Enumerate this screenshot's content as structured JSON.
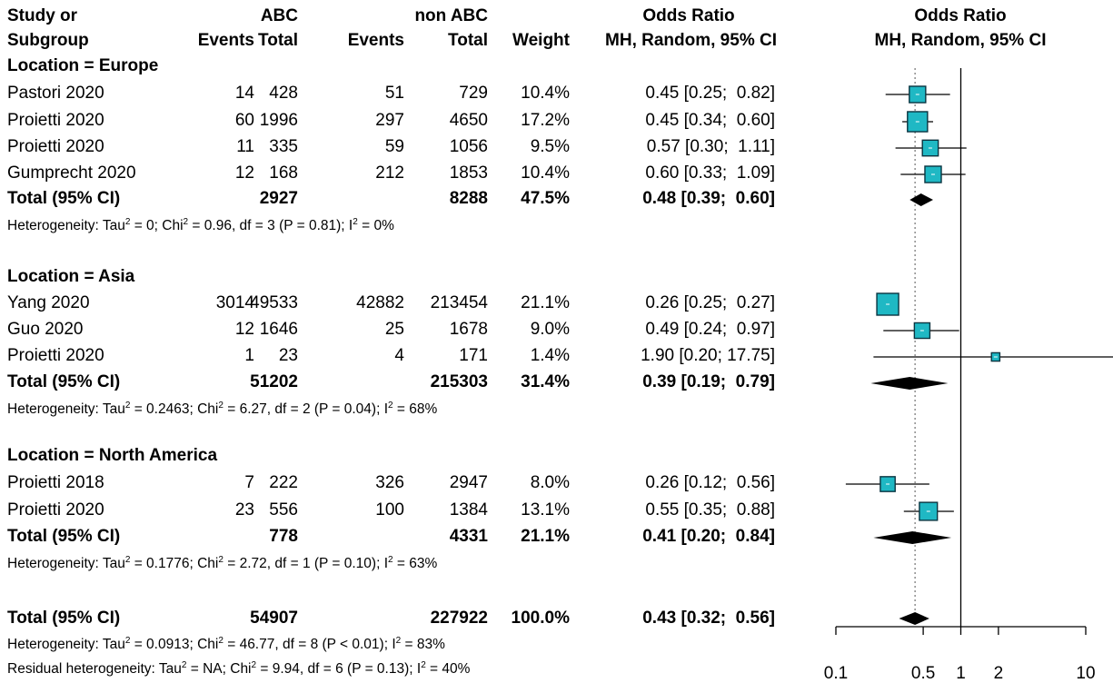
{
  "header": {
    "col_study": [
      "Study or",
      "Subgroup"
    ],
    "abc_label": "ABC",
    "nonabc_label": "non ABC",
    "events_label": "Events",
    "total_label": "Total",
    "weight_label": "Weight",
    "or_label": [
      "Odds Ratio",
      "MH, Random, 95% CI"
    ],
    "plot_label": [
      "Odds Ratio",
      "MH, Random, 95% CI"
    ]
  },
  "groups": [
    {
      "label": "Location = Europe",
      "studies": [
        {
          "name": "Pastori 2020",
          "e1": "14",
          "t1": "428",
          "e2": "51",
          "t2": "729",
          "w": "10.4%",
          "ci": "0.45 [0.25;  0.82]"
        },
        {
          "name": "Proietti 2020",
          "e1": "60",
          "t1": "1996",
          "e2": "297",
          "t2": "4650",
          "w": "17.2%",
          "ci": "0.45 [0.34;  0.60]"
        },
        {
          "name": "Proietti 2020",
          "e1": "11",
          "t1": "335",
          "e2": "59",
          "t2": "1056",
          "w": "9.5%",
          "ci": "0.57 [0.30;  1.11]"
        },
        {
          "name": "Gumprecht 2020",
          "e1": "12",
          "t1": "168",
          "e2": "212",
          "t2": "1853",
          "w": "10.4%",
          "ci": "0.60 [0.33;  1.09]"
        }
      ],
      "total": {
        "label": "Total (95% CI)",
        "t1": "2927",
        "t2": "8288",
        "w": "47.5%",
        "ci": "0.48 [0.39;  0.60]"
      },
      "het": {
        "tau2": "0",
        "chi2": "0.96",
        "df": "3",
        "p": "(P = 0.81)",
        "i2": "0%"
      }
    },
    {
      "label": "Location = Asia",
      "studies": [
        {
          "name": "Yang 2020",
          "e1": "3014",
          "t1": "49533",
          "e2": "42882",
          "t2": "213454",
          "w": "21.1%",
          "ci": "0.26 [0.25;  0.27]"
        },
        {
          "name": "Guo 2020",
          "e1": "12",
          "t1": "1646",
          "e2": "25",
          "t2": "1678",
          "w": "9.0%",
          "ci": "0.49 [0.24;  0.97]"
        },
        {
          "name": "Proietti 2020",
          "e1": "1",
          "t1": "23",
          "e2": "4",
          "t2": "171",
          "w": "1.4%",
          "ci": "1.90 [0.20; 17.75]"
        }
      ],
      "total": {
        "label": "Total (95% CI)",
        "t1": "51202",
        "t2": "215303",
        "w": "31.4%",
        "ci": "0.39 [0.19;  0.79]"
      },
      "het": {
        "tau2": "0.2463",
        "chi2": "6.27",
        "df": "2",
        "p": "(P = 0.04)",
        "i2": "68%"
      }
    },
    {
      "label": "Location = North America",
      "studies": [
        {
          "name": "Proietti 2018",
          "e1": "7",
          "t1": "222",
          "e2": "326",
          "t2": "2947",
          "w": "8.0%",
          "ci": "0.26 [0.12;  0.56]"
        },
        {
          "name": "Proietti 2020",
          "e1": "23",
          "t1": "556",
          "e2": "100",
          "t2": "1384",
          "w": "13.1%",
          "ci": "0.55 [0.35;  0.88]"
        }
      ],
      "total": {
        "label": "Total (95% CI)",
        "t1": "778",
        "t2": "4331",
        "w": "21.1%",
        "ci": "0.41 [0.20;  0.84]"
      },
      "het": {
        "tau2": "0.1776",
        "chi2": "2.72",
        "df": "1",
        "p": "(P = 0.10)",
        "i2": "63%"
      }
    }
  ],
  "overall": {
    "label": "Total (95% CI)",
    "t1": "54907",
    "t2": "227922",
    "w": "100.0%",
    "ci": "0.43 [0.32;  0.56]",
    "het": {
      "tau2": "0.0913",
      "chi2": "46.77",
      "df": "8",
      "p": "(P < 0.01)",
      "i2": "83%"
    },
    "resid": {
      "tau2": "NA",
      "chi2": "9.94",
      "df": "6",
      "p": "(P = 0.13)",
      "i2": "40%"
    }
  },
  "colors": {
    "box": "#1fb8c4",
    "box_border": "#0a3440",
    "diamond": "#000000",
    "line": "#000000"
  },
  "chart_data": {
    "type": "forest",
    "x_scale": "log",
    "xlim": [
      0.1,
      10
    ],
    "x_ticks": [
      "0.1",
      "0.5",
      "1",
      "2",
      "10"
    ],
    "reference_line": 1,
    "pooled_line": 0.43,
    "studies": [
      {
        "or": 0.45,
        "lo": 0.25,
        "hi": 0.82,
        "weight": 10.4
      },
      {
        "or": 0.45,
        "lo": 0.34,
        "hi": 0.6,
        "weight": 17.2
      },
      {
        "or": 0.57,
        "lo": 0.3,
        "hi": 1.11,
        "weight": 9.5
      },
      {
        "or": 0.6,
        "lo": 0.33,
        "hi": 1.09,
        "weight": 10.4
      },
      {
        "or": 0.26,
        "lo": 0.25,
        "hi": 0.27,
        "weight": 21.1
      },
      {
        "or": 0.49,
        "lo": 0.24,
        "hi": 0.97,
        "weight": 9.0
      },
      {
        "or": 1.9,
        "lo": 0.2,
        "hi": 17.75,
        "weight": 1.4
      },
      {
        "or": 0.26,
        "lo": 0.12,
        "hi": 0.56,
        "weight": 8.0
      },
      {
        "or": 0.55,
        "lo": 0.35,
        "hi": 0.88,
        "weight": 13.1
      }
    ],
    "subgroup_totals": [
      {
        "or": 0.48,
        "lo": 0.39,
        "hi": 0.6
      },
      {
        "or": 0.39,
        "lo": 0.19,
        "hi": 0.79
      },
      {
        "or": 0.41,
        "lo": 0.2,
        "hi": 0.84
      }
    ],
    "overall": {
      "or": 0.43,
      "lo": 0.32,
      "hi": 0.56
    }
  }
}
